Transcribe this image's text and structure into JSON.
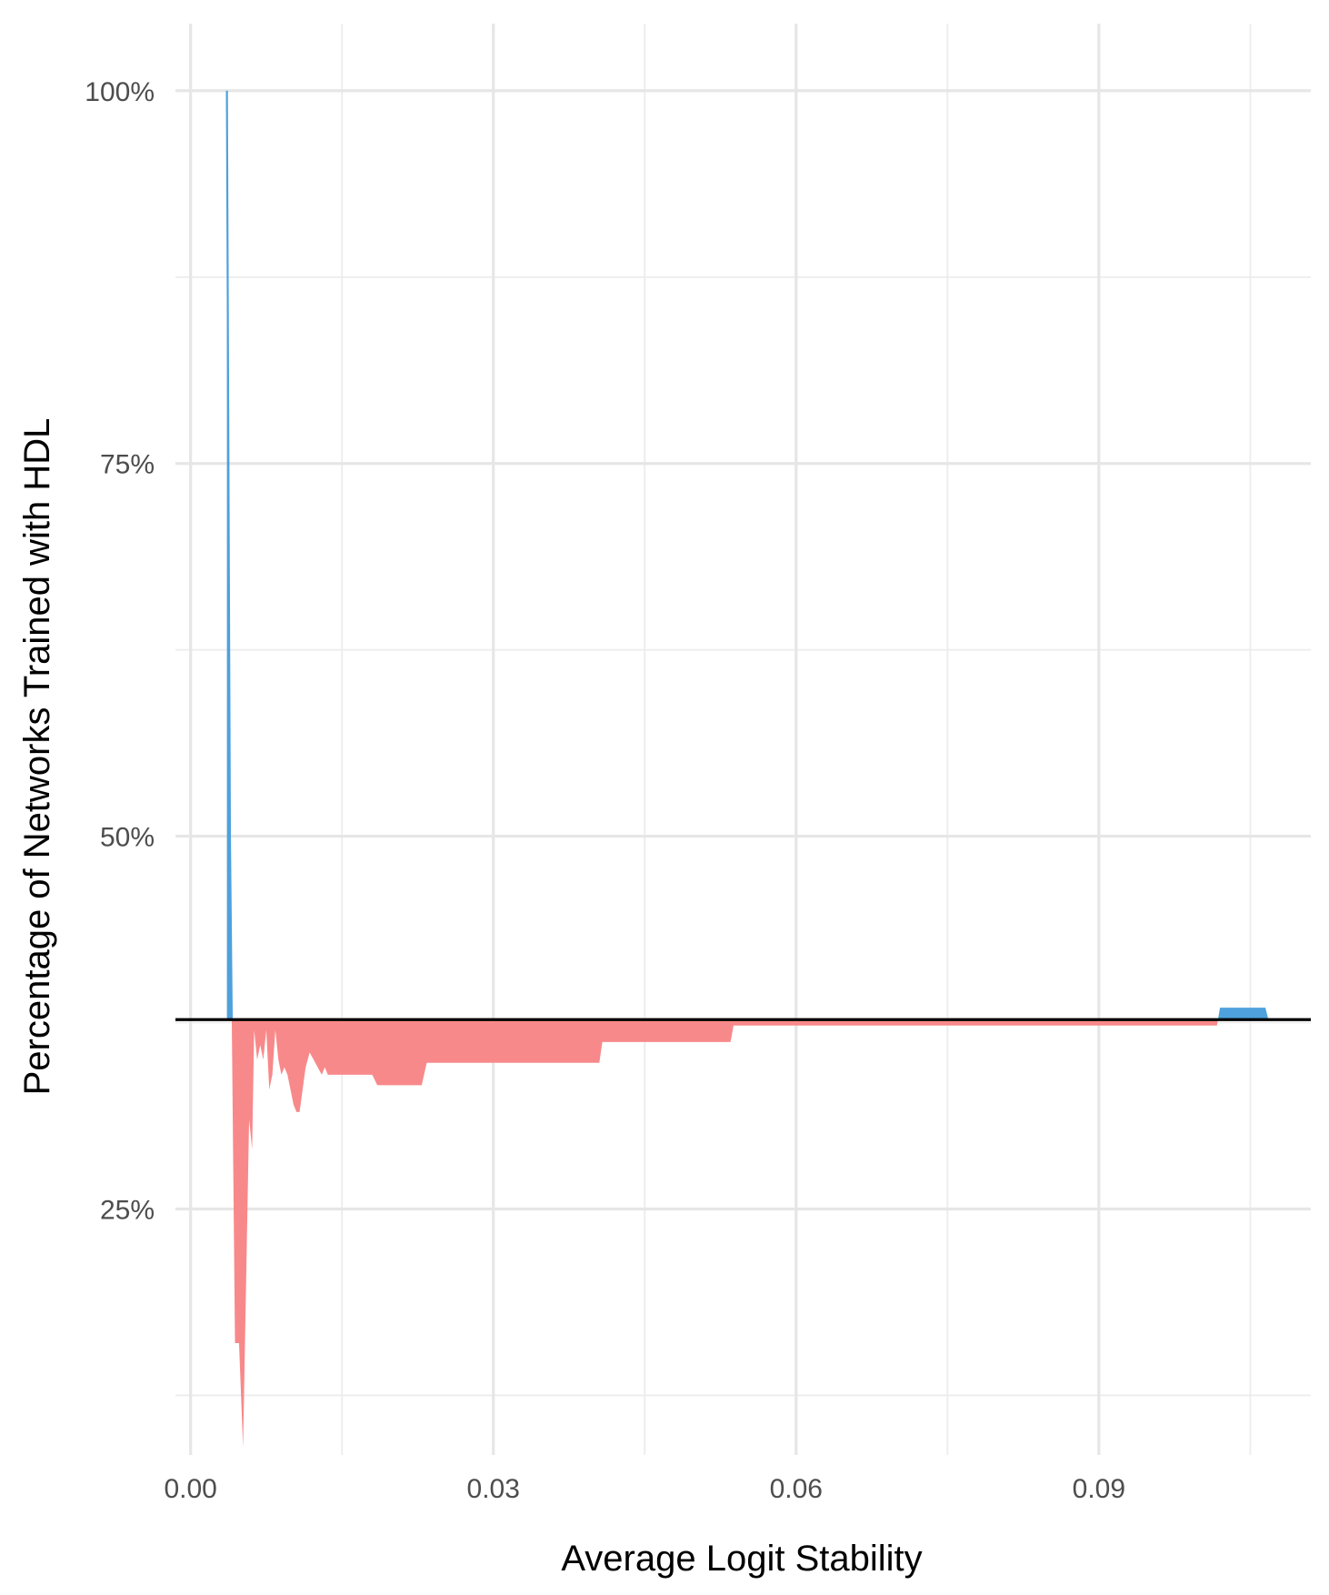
{
  "chart_data": {
    "type": "area",
    "xlabel": "Average Logit Stability",
    "ylabel": "Percentage of Networks Trained with HDL",
    "xlim": [
      -0.0015,
      0.111
    ],
    "ylim": [
      0.085,
      1.045
    ],
    "x_ticks": [
      0.0,
      0.03,
      0.06,
      0.09
    ],
    "x_tick_labels": [
      "0.00",
      "0.03",
      "0.06",
      "0.09"
    ],
    "y_ticks": [
      0.25,
      0.5,
      0.75,
      1.0
    ],
    "y_tick_labels": [
      "25%",
      "50%",
      "75%",
      "100%"
    ],
    "x_minor": [
      0.015,
      0.045,
      0.075,
      0.105
    ],
    "y_minor": [
      0.125,
      0.375,
      0.625,
      0.875
    ],
    "grid": true,
    "legend": "none",
    "baseline": 0.377,
    "colors": {
      "above": "#4ea1dc",
      "below": "#f8898a",
      "baseline": "#000000",
      "grid": "#e6e6e6"
    },
    "series": [
      {
        "x": [
          0.0036,
          0.0039,
          0.0044,
          0.0048,
          0.0052,
          0.0055,
          0.0058,
          0.0061,
          0.0063,
          0.0066,
          0.0069,
          0.0072,
          0.0075,
          0.0078,
          0.0081,
          0.0084,
          0.0087,
          0.009,
          0.0093,
          0.0096,
          0.0099,
          0.0102,
          0.0105,
          0.0108,
          0.0111,
          0.0114,
          0.0118,
          0.0122,
          0.0126,
          0.013,
          0.0133,
          0.0136,
          0.0141,
          0.018,
          0.0185,
          0.0229,
          0.0234,
          0.0405,
          0.0408,
          0.0535,
          0.0538,
          0.1017,
          0.102,
          0.1065,
          0.1068
        ],
        "y": [
          1.0,
          0.5,
          0.16,
          0.16,
          0.09,
          0.2,
          0.31,
          0.29,
          0.37,
          0.35,
          0.36,
          0.35,
          0.37,
          0.33,
          0.34,
          0.37,
          0.35,
          0.34,
          0.345,
          0.34,
          0.33,
          0.32,
          0.315,
          0.315,
          0.33,
          0.345,
          0.355,
          0.35,
          0.345,
          0.34,
          0.345,
          0.34,
          0.34,
          0.34,
          0.333,
          0.333,
          0.348,
          0.348,
          0.362,
          0.362,
          0.373,
          0.373,
          0.385,
          0.385,
          0.377
        ]
      }
    ]
  }
}
